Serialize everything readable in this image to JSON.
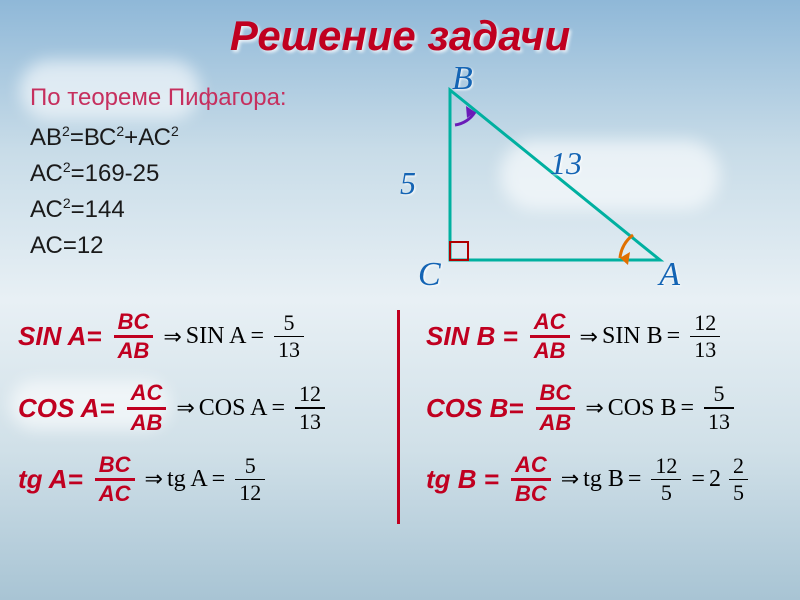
{
  "title": "Решение задачи",
  "given": {
    "label": "По теореме Пифагора:",
    "lines": [
      "АВ²=ВС²+АС²",
      "АС²=169-25",
      "АС²=144",
      "АС=12"
    ]
  },
  "triangle": {
    "vertices": {
      "B": "B",
      "C": "C",
      "A": "A"
    },
    "sides": {
      "BC": "5",
      "AB": "13"
    },
    "stroke": "#00b0a0",
    "stroke_width": 3,
    "right_angle_stroke": "#b00000",
    "arc_B": "#6a1bb8",
    "arc_A": "#e07000",
    "label_color": "#1464b4"
  },
  "formulas": {
    "left": [
      {
        "fn": "SIN A=",
        "red_num": "BC",
        "red_den": "AB",
        "rfn": "SIN A",
        "val_num": "5",
        "val_den": "13"
      },
      {
        "fn": "COS A=",
        "red_num": "AC",
        "red_den": "AB",
        "rfn": "COS A",
        "val_num": "12",
        "val_den": "13"
      },
      {
        "fn": "tg A=",
        "red_num": "BC",
        "red_den": "AC",
        "rfn": "tg A",
        "val_num": "5",
        "val_den": "12"
      }
    ],
    "right": [
      {
        "fn": "SIN B =",
        "red_num": "AC",
        "red_den": "AB",
        "rfn": "SIN B",
        "val_num": "12",
        "val_den": "13"
      },
      {
        "fn": "COS B=",
        "red_num": "BC",
        "red_den": "AB",
        "rfn": "COS B",
        "val_num": "5",
        "val_den": "13"
      },
      {
        "fn": "tg B =",
        "red_num": "AC",
        "red_den": "BC",
        "rfn": "tg B",
        "val_num": "12",
        "val_den": "5",
        "mixed_whole": "2",
        "mixed_num": "2",
        "mixed_den": "5"
      }
    ]
  },
  "colors": {
    "title": "#c00020",
    "given_label": "#c62f5e",
    "formula_red": "#c00020",
    "text": "#000000"
  }
}
